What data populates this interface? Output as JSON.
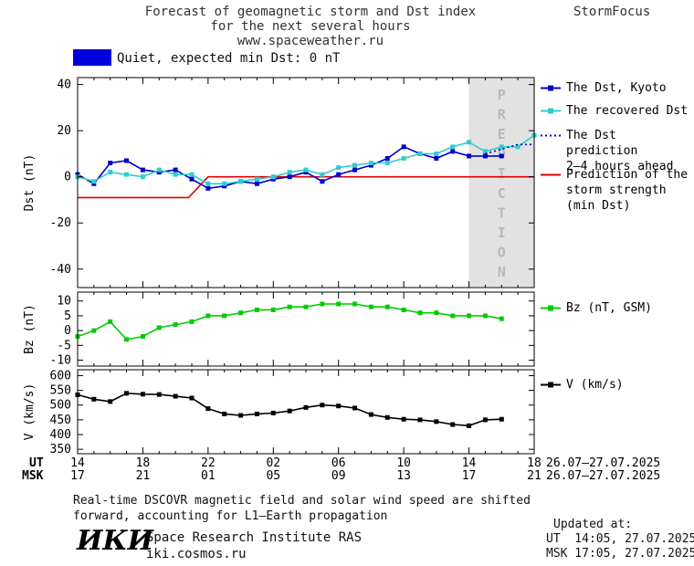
{
  "header": {
    "title_lines": [
      "Forecast of geomagnetic storm and Dst index",
      "for the next several hours",
      "www.spaceweather.ru"
    ],
    "brand": "StormFocus"
  },
  "banner": {
    "swatch_color": "#0000dd",
    "text": "Quiet, expected min Dst: 0 nT"
  },
  "chart_data": {
    "type": "line",
    "title": "Forecast of geomagnetic storm and Dst index for the next several hours",
    "x_axis": {
      "unit_rows": [
        "UT",
        "MSK"
      ],
      "range_hours": [
        0,
        28
      ],
      "tick_hours": [
        0,
        4,
        8,
        12,
        16,
        20,
        24,
        28
      ],
      "tick_labels_ut": [
        "14",
        "18",
        "22",
        "02",
        "06",
        "10",
        "14",
        "18"
      ],
      "tick_labels_msk": [
        "17",
        "21",
        "01",
        "05",
        "09",
        "13",
        "17",
        "21"
      ],
      "date_span_ut": "26.07–27.07.2025",
      "date_span_msk": "26.07–27.07.2025"
    },
    "panels": [
      {
        "ylabel": "Dst (nT)",
        "ylim": [
          -48,
          43
        ],
        "yticks": [
          40,
          20,
          0,
          -20,
          -40
        ],
        "prediction_band": {
          "from_hour": 24,
          "to_hour": 28,
          "label": "PREDICTION"
        },
        "series": [
          {
            "name": "Prediction of the storm strength (min Dst)",
            "color": "#dd0000",
            "style": "solid",
            "marker": false,
            "x": [
              0,
              6.8,
              8,
              28
            ],
            "y": [
              -9,
              -9,
              0,
              0
            ]
          },
          {
            "name": "The Dst, Kyoto",
            "color": "#0000cc",
            "style": "solid",
            "marker": true,
            "x": [
              0,
              1,
              2,
              3,
              4,
              5,
              6,
              7,
              8,
              9,
              10,
              11,
              12,
              13,
              14,
              15,
              16,
              17,
              18,
              19,
              20,
              21,
              22,
              23,
              24,
              25,
              26
            ],
            "y": [
              1,
              -3,
              6,
              7,
              3,
              2,
              3,
              -1,
              -5,
              -4,
              -2,
              -3,
              -1,
              0,
              2,
              -2,
              1,
              3,
              5,
              8,
              13,
              10,
              8,
              11,
              9,
              9,
              9
            ]
          },
          {
            "name": "The recovered Dst",
            "color": "#33cccc",
            "style": "solid",
            "marker": true,
            "x": [
              0,
              1,
              2,
              3,
              4,
              5,
              6,
              7,
              8,
              9,
              10,
              11,
              12,
              13,
              14,
              15,
              16,
              17,
              18,
              19,
              20,
              21,
              22,
              23,
              24,
              25,
              26,
              27,
              28
            ],
            "y": [
              0,
              -2,
              2,
              1,
              0,
              3,
              1,
              1,
              -3,
              -3,
              -2,
              -1,
              0,
              2,
              3,
              1,
              4,
              5,
              6,
              6,
              8,
              10,
              10,
              13,
              15,
              11,
              13,
              13,
              18
            ]
          },
          {
            "name": "The Dst prediction 2-4 hours ahead",
            "color": "#0000cc",
            "style": "dotted",
            "marker": false,
            "x": [
              25,
              26,
              27,
              28
            ],
            "y": [
              10,
              12,
              14,
              14
            ]
          }
        ]
      },
      {
        "ylabel": "Bz (nT)",
        "ylim": [
          -12,
          13
        ],
        "yticks": [
          10,
          5,
          0,
          -5,
          -10
        ],
        "series": [
          {
            "name": "Bz (nT, GSM)",
            "color": "#00cc00",
            "style": "solid",
            "marker": true,
            "x": [
              0,
              1,
              2,
              3,
              4,
              5,
              6,
              7,
              8,
              9,
              10,
              11,
              12,
              13,
              14,
              15,
              16,
              17,
              18,
              19,
              20,
              21,
              22,
              23,
              24,
              25,
              26
            ],
            "y": [
              -2,
              0,
              3,
              -3,
              -2,
              1,
              2,
              3,
              5,
              5,
              6,
              7,
              7,
              8,
              8,
              9,
              9,
              9,
              8,
              8,
              7,
              6,
              6,
              5,
              5,
              5,
              4
            ]
          }
        ]
      },
      {
        "ylabel": "V (km/s)",
        "ylim": [
          335,
          620
        ],
        "yticks": [
          600,
          550,
          500,
          450,
          400,
          350
        ],
        "series": [
          {
            "name": "V (km/s)",
            "color": "#000000",
            "style": "solid",
            "marker": true,
            "x": [
              0,
              1,
              2,
              3,
              4,
              5,
              6,
              7,
              8,
              9,
              10,
              11,
              12,
              13,
              14,
              15,
              16,
              17,
              18,
              19,
              20,
              21,
              22,
              23,
              24,
              25,
              26
            ],
            "y": [
              535,
              520,
              512,
              540,
              537,
              536,
              530,
              524,
              488,
              470,
              465,
              470,
              473,
              480,
              492,
              500,
              497,
              490,
              468,
              458,
              452,
              450,
              444,
              434,
              430,
              450,
              452
            ]
          }
        ]
      }
    ]
  },
  "legend": {
    "dst_items": [
      {
        "label_lines": [
          "The Dst, Kyoto"
        ],
        "color": "#0000cc",
        "swatch": "line-marker"
      },
      {
        "label_lines": [
          "The recovered Dst"
        ],
        "color": "#33cccc",
        "swatch": "line-marker"
      },
      {
        "label_lines": [
          "The Dst prediction",
          "2–4 hours ahead"
        ],
        "color": "#0000cc",
        "swatch": "dotted-line"
      },
      {
        "label_lines": [
          "Prediction of the",
          "storm strength",
          "(min Dst)"
        ],
        "color": "#dd0000",
        "swatch": "line"
      }
    ],
    "bz_item": {
      "label": "Bz (nT, GSM)",
      "color": "#00cc00"
    },
    "v_item": {
      "label": "V (km/s)",
      "color": "#000000"
    }
  },
  "axis_footer": {
    "ut_label": "UT",
    "msk_label": "MSK"
  },
  "footnote_lines": [
    "Real-time DSCOVR magnetic field and solar wind speed are shifted",
    "forward, accounting for L1–Earth propagation"
  ],
  "footer": {
    "logo": "ИКИ",
    "institute": "Space Research Institute RAS",
    "site": "iki.cosmos.ru",
    "updated_label": "Updated at:",
    "updated_ut": "UT  14:05, 27.07.2025",
    "updated_msk": "MSK 17:05, 27.07.2025"
  }
}
